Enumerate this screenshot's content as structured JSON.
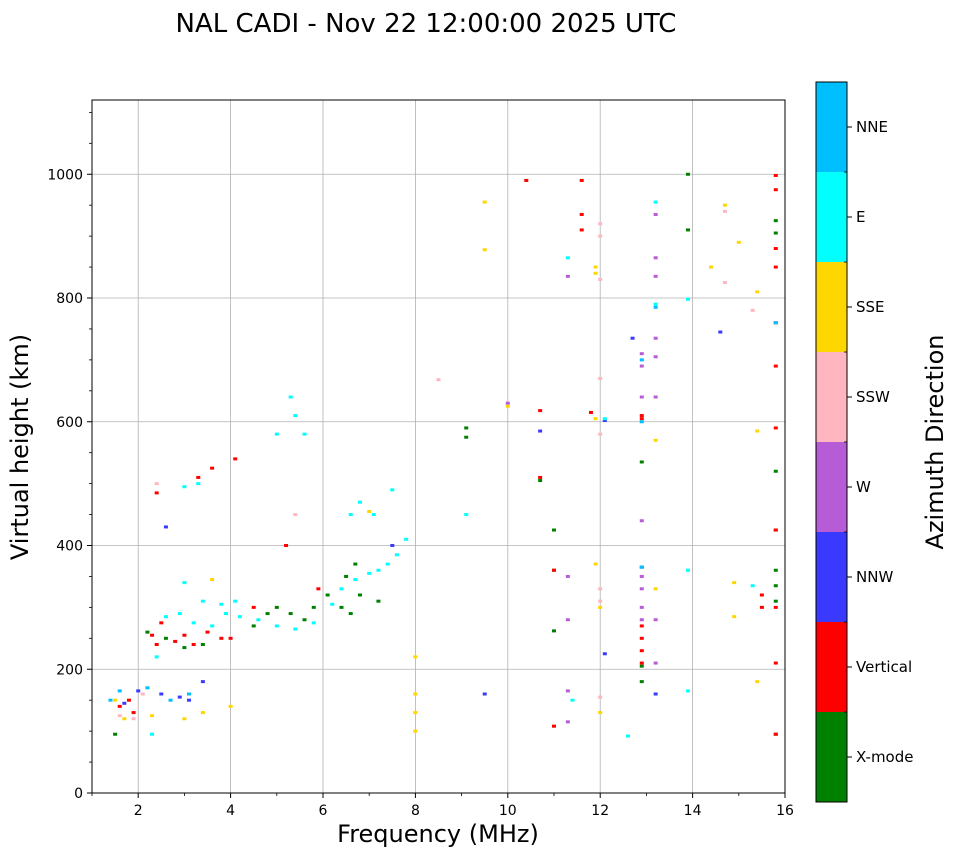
{
  "chart_data": {
    "type": "scatter",
    "title": "NAL CADI - Nov 22 12:00:00 2025 UTC",
    "xlabel": "Frequency (MHz)",
    "ylabel": "Virtual height (km)",
    "xlim": [
      1,
      16
    ],
    "ylim": [
      0,
      1120
    ],
    "xticks": [
      2,
      4,
      6,
      8,
      10,
      12,
      14,
      16
    ],
    "yticks": [
      0,
      200,
      400,
      600,
      800,
      1000
    ],
    "grid": true,
    "colorbar": {
      "label": "Azimuth Direction",
      "categories": [
        {
          "name": "X-mode",
          "color": "#008000"
        },
        {
          "name": "Vertical",
          "color": "#ff0000"
        },
        {
          "name": "NNW",
          "color": "#3a3aff"
        },
        {
          "name": "W",
          "color": "#b65cd6"
        },
        {
          "name": "SSW",
          "color": "#ffb6c1"
        },
        {
          "name": "SSE",
          "color": "#ffd700"
        },
        {
          "name": "E",
          "color": "#00ffff"
        },
        {
          "name": "NNE",
          "color": "#00bfff"
        }
      ]
    },
    "series": [
      {
        "name": "X-mode",
        "points": [
          [
            1.5,
            95
          ],
          [
            2.2,
            260
          ],
          [
            2.6,
            250
          ],
          [
            3.0,
            235
          ],
          [
            3.4,
            240
          ],
          [
            4.5,
            270
          ],
          [
            4.8,
            290
          ],
          [
            5.0,
            300
          ],
          [
            5.3,
            290
          ],
          [
            5.6,
            280
          ],
          [
            5.8,
            300
          ],
          [
            6.1,
            320
          ],
          [
            6.4,
            300
          ],
          [
            6.6,
            290
          ],
          [
            6.8,
            320
          ],
          [
            7.2,
            310
          ],
          [
            6.5,
            350
          ],
          [
            6.7,
            370
          ],
          [
            9.1,
            575
          ],
          [
            9.1,
            590
          ],
          [
            10.7,
            505
          ],
          [
            11.0,
            425
          ],
          [
            11.0,
            360
          ],
          [
            11.0,
            262
          ],
          [
            12.9,
            535
          ],
          [
            12.9,
            205
          ],
          [
            12.9,
            180
          ],
          [
            13.9,
            910
          ],
          [
            13.9,
            1000
          ],
          [
            15.8,
            310
          ],
          [
            15.8,
            335
          ],
          [
            15.8,
            360
          ],
          [
            15.8,
            425
          ],
          [
            15.8,
            520
          ],
          [
            15.8,
            905
          ],
          [
            15.8,
            925
          ],
          [
            15.8,
            95
          ]
        ]
      },
      {
        "name": "Vertical",
        "points": [
          [
            1.6,
            140
          ],
          [
            1.8,
            150
          ],
          [
            1.9,
            130
          ],
          [
            2.3,
            255
          ],
          [
            2.4,
            240
          ],
          [
            2.5,
            275
          ],
          [
            2.8,
            245
          ],
          [
            3.0,
            255
          ],
          [
            3.2,
            240
          ],
          [
            3.5,
            260
          ],
          [
            3.8,
            250
          ],
          [
            4.0,
            250
          ],
          [
            2.4,
            485
          ],
          [
            3.3,
            510
          ],
          [
            3.6,
            525
          ],
          [
            4.1,
            540
          ],
          [
            4.5,
            300
          ],
          [
            5.2,
            400
          ],
          [
            5.9,
            330
          ],
          [
            10.4,
            990
          ],
          [
            10.7,
            510
          ],
          [
            10.7,
            618
          ],
          [
            11.0,
            360
          ],
          [
            11.0,
            108
          ],
          [
            11.6,
            910
          ],
          [
            11.6,
            935
          ],
          [
            11.6,
            990
          ],
          [
            11.8,
            615
          ],
          [
            12.9,
            605
          ],
          [
            12.9,
            610
          ],
          [
            12.9,
            270
          ],
          [
            12.9,
            250
          ],
          [
            12.9,
            230
          ],
          [
            12.9,
            210
          ],
          [
            15.5,
            300
          ],
          [
            15.5,
            320
          ],
          [
            15.8,
            95
          ],
          [
            15.8,
            210
          ],
          [
            15.8,
            300
          ],
          [
            15.8,
            425
          ],
          [
            15.8,
            590
          ],
          [
            15.8,
            690
          ],
          [
            15.8,
            760
          ],
          [
            15.8,
            850
          ],
          [
            15.8,
            880
          ],
          [
            15.8,
            975
          ],
          [
            15.8,
            998
          ]
        ]
      },
      {
        "name": "NNW",
        "points": [
          [
            1.7,
            145
          ],
          [
            2.0,
            165
          ],
          [
            2.5,
            160
          ],
          [
            2.9,
            155
          ],
          [
            3.1,
            150
          ],
          [
            3.4,
            180
          ],
          [
            2.6,
            430
          ],
          [
            9.5,
            160
          ],
          [
            10.7,
            585
          ],
          [
            12.1,
            225
          ],
          [
            12.1,
            602
          ],
          [
            12.7,
            735
          ],
          [
            13.2,
            160
          ],
          [
            14.6,
            745
          ],
          [
            12.9,
            365
          ],
          [
            7.5,
            400
          ]
        ]
      },
      {
        "name": "W",
        "points": [
          [
            12.9,
            690
          ],
          [
            12.9,
            710
          ],
          [
            12.9,
            640
          ],
          [
            12.9,
            440
          ],
          [
            12.9,
            330
          ],
          [
            12.9,
            300
          ],
          [
            12.9,
            280
          ],
          [
            12.9,
            350
          ],
          [
            13.2,
            935
          ],
          [
            13.2,
            865
          ],
          [
            13.2,
            835
          ],
          [
            13.2,
            735
          ],
          [
            13.2,
            705
          ],
          [
            13.2,
            640
          ],
          [
            13.2,
            280
          ],
          [
            13.2,
            210
          ],
          [
            11.3,
            835
          ],
          [
            11.3,
            350
          ],
          [
            11.3,
            280
          ],
          [
            11.3,
            165
          ],
          [
            11.3,
            115
          ],
          [
            10.0,
            630
          ]
        ]
      },
      {
        "name": "SSW",
        "points": [
          [
            1.6,
            125
          ],
          [
            2.1,
            160
          ],
          [
            2.4,
            500
          ],
          [
            5.4,
            450
          ],
          [
            8.5,
            668
          ],
          [
            12.0,
            920
          ],
          [
            12.0,
            900
          ],
          [
            12.0,
            830
          ],
          [
            12.0,
            670
          ],
          [
            12.0,
            580
          ],
          [
            12.0,
            330
          ],
          [
            12.0,
            310
          ],
          [
            12.0,
            155
          ],
          [
            14.7,
            825
          ],
          [
            14.7,
            940
          ],
          [
            15.3,
            780
          ],
          [
            1.9,
            120
          ]
        ]
      },
      {
        "name": "SSE",
        "points": [
          [
            1.5,
            150
          ],
          [
            1.7,
            120
          ],
          [
            2.3,
            125
          ],
          [
            3.0,
            120
          ],
          [
            3.4,
            130
          ],
          [
            3.6,
            345
          ],
          [
            4.0,
            140
          ],
          [
            7.0,
            455
          ],
          [
            8.0,
            220
          ],
          [
            8.0,
            160
          ],
          [
            8.0,
            130
          ],
          [
            8.0,
            100
          ],
          [
            9.5,
            955
          ],
          [
            9.5,
            878
          ],
          [
            10.0,
            625
          ],
          [
            11.9,
            370
          ],
          [
            11.9,
            605
          ],
          [
            11.9,
            850
          ],
          [
            11.9,
            840
          ],
          [
            13.2,
            570
          ],
          [
            13.2,
            330
          ],
          [
            14.4,
            850
          ],
          [
            14.7,
            950
          ],
          [
            15.0,
            890
          ],
          [
            14.9,
            340
          ],
          [
            14.9,
            285
          ],
          [
            15.4,
            810
          ],
          [
            15.4,
            585
          ],
          [
            15.4,
            180
          ],
          [
            12.0,
            130
          ],
          [
            12.0,
            300
          ]
        ]
      },
      {
        "name": "E",
        "points": [
          [
            2.3,
            95
          ],
          [
            2.4,
            220
          ],
          [
            2.6,
            285
          ],
          [
            2.9,
            290
          ],
          [
            3.2,
            275
          ],
          [
            3.4,
            310
          ],
          [
            3.6,
            270
          ],
          [
            3.9,
            290
          ],
          [
            4.2,
            285
          ],
          [
            4.6,
            280
          ],
          [
            5.0,
            270
          ],
          [
            5.4,
            265
          ],
          [
            5.8,
            275
          ],
          [
            6.2,
            305
          ],
          [
            6.4,
            330
          ],
          [
            6.7,
            345
          ],
          [
            7.0,
            355
          ],
          [
            7.2,
            360
          ],
          [
            7.4,
            370
          ],
          [
            7.6,
            385
          ],
          [
            7.8,
            410
          ],
          [
            3.0,
            340
          ],
          [
            3.8,
            305
          ],
          [
            4.1,
            310
          ],
          [
            5.0,
            580
          ],
          [
            5.3,
            640
          ],
          [
            5.4,
            610
          ],
          [
            5.6,
            580
          ],
          [
            6.6,
            450
          ],
          [
            6.8,
            470
          ],
          [
            7.1,
            450
          ],
          [
            7.5,
            490
          ],
          [
            9.1,
            450
          ],
          [
            11.3,
            865
          ],
          [
            11.4,
            150
          ],
          [
            12.6,
            92
          ],
          [
            13.2,
            955
          ],
          [
            13.2,
            790
          ],
          [
            13.9,
            360
          ],
          [
            13.9,
            165
          ],
          [
            13.9,
            798
          ],
          [
            15.3,
            335
          ],
          [
            3.3,
            500
          ],
          [
            3.0,
            495
          ],
          [
            12.1,
            605
          ]
        ]
      },
      {
        "name": "NNE",
        "points": [
          [
            1.4,
            150
          ],
          [
            1.6,
            165
          ],
          [
            2.2,
            170
          ],
          [
            2.7,
            150
          ],
          [
            3.1,
            160
          ],
          [
            12.9,
            365
          ],
          [
            12.9,
            700
          ],
          [
            12.9,
            600
          ],
          [
            13.2,
            785
          ],
          [
            15.8,
            760
          ]
        ]
      }
    ]
  }
}
